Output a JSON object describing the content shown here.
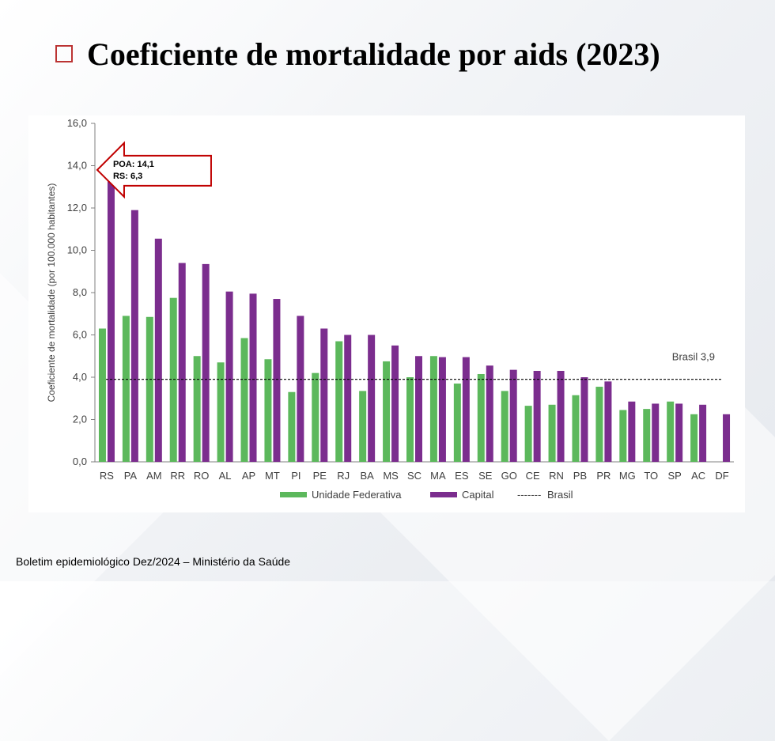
{
  "slide": {
    "title": "Coeficiente de  mortalidade por aids (2023)",
    "footer": "Boletim epidemiológico Dez/2024 – Ministério da Saúde"
  },
  "colors": {
    "uf": "#5cb85c",
    "capital": "#7b2d8e",
    "callout_border": "#c00000",
    "axis_text": "#404040"
  },
  "chart_data": {
    "type": "bar",
    "ylabel": "Coeficiente de mortalidade (por 100.000 habitantes)",
    "ylim": [
      0,
      16
    ],
    "yticks": [
      "0,0",
      "2,0",
      "4,0",
      "6,0",
      "8,0",
      "10,0",
      "12,0",
      "14,0",
      "16,0"
    ],
    "categories": [
      "RS",
      "PA",
      "AM",
      "RR",
      "RO",
      "AL",
      "AP",
      "MT",
      "PI",
      "PE",
      "RJ",
      "BA",
      "MS",
      "SC",
      "MA",
      "ES",
      "SE",
      "GO",
      "CE",
      "RN",
      "PB",
      "PR",
      "MG",
      "TO",
      "SP",
      "AC",
      "DF"
    ],
    "series": [
      {
        "name": "Unidade Federativa",
        "values": [
          6.3,
          6.9,
          6.85,
          7.75,
          5.0,
          4.7,
          5.85,
          4.85,
          3.3,
          4.2,
          5.7,
          3.35,
          4.75,
          4.0,
          5.0,
          3.7,
          4.15,
          3.35,
          2.65,
          2.7,
          3.15,
          3.55,
          2.45,
          2.5,
          2.85,
          2.25,
          null
        ]
      },
      {
        "name": "Capital",
        "values": [
          14.1,
          11.9,
          10.55,
          9.4,
          9.35,
          8.05,
          7.95,
          7.7,
          6.9,
          6.3,
          6.0,
          6.0,
          5.5,
          5.0,
          4.95,
          4.95,
          4.55,
          4.35,
          4.3,
          4.3,
          4.0,
          3.8,
          2.85,
          2.75,
          2.75,
          2.7,
          2.25
        ]
      }
    ],
    "reference_line": {
      "name": "Brasil",
      "value": 3.9,
      "label": "Brasil 3,9"
    },
    "legend": {
      "position": "bottom",
      "uf": "Unidade Federativa",
      "capital": "Capital",
      "brasil": "Brasil",
      "brasil_dash": "-------"
    },
    "annotation": {
      "line1": "POA: 14,1",
      "line2": "RS: 6,3",
      "points_to": "RS"
    },
    "grid": false
  }
}
